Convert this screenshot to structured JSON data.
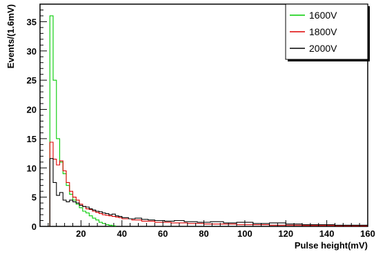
{
  "chart_data": {
    "type": "line",
    "xlabel": "Pulse height(mV)",
    "ylabel": "Events/(1.6mV)",
    "xlim": [
      0,
      160
    ],
    "ylim": [
      0,
      38
    ],
    "x_ticks": [
      20,
      40,
      60,
      80,
      100,
      120,
      140,
      160
    ],
    "x_tick_labels": [
      "20",
      "40",
      "60",
      "80",
      "100",
      "120",
      "140",
      "160"
    ],
    "y_ticks": [
      0,
      5,
      10,
      15,
      20,
      25,
      30,
      35
    ],
    "y_tick_labels": [
      "0",
      "5",
      "10",
      "15",
      "20",
      "25",
      "30",
      "35"
    ],
    "grid": false,
    "legend_position": "top-right",
    "series": [
      {
        "name": "1600V",
        "color": "#00cc00",
        "bins": [
          [
            4.8,
            6.4,
            36.0
          ],
          [
            6.4,
            8.0,
            25.0
          ],
          [
            8.0,
            9.6,
            15.0
          ],
          [
            9.6,
            11.2,
            11.0
          ],
          [
            11.2,
            12.8,
            9.0
          ],
          [
            12.8,
            14.4,
            7.0
          ],
          [
            14.4,
            16.0,
            5.5
          ],
          [
            16.0,
            17.6,
            4.5
          ],
          [
            17.6,
            19.2,
            3.8
          ],
          [
            19.2,
            20.8,
            3.2
          ],
          [
            20.8,
            22.4,
            2.6
          ],
          [
            22.4,
            24.0,
            2.3
          ],
          [
            24.0,
            25.6,
            1.8
          ],
          [
            25.6,
            27.2,
            1.4
          ],
          [
            27.2,
            28.8,
            1.1
          ],
          [
            28.8,
            30.4,
            0.7
          ],
          [
            30.4,
            32.0,
            0.5
          ],
          [
            32.0,
            33.6,
            0.3
          ],
          [
            33.6,
            35.2,
            0.2
          ],
          [
            35.2,
            36.8,
            0.1
          ]
        ]
      },
      {
        "name": "1800V",
        "color": "#dd0000",
        "bins": [
          [
            4.8,
            6.4,
            14.4
          ],
          [
            6.4,
            8.0,
            11.5
          ],
          [
            8.0,
            9.6,
            10.5
          ],
          [
            9.6,
            11.2,
            11.2
          ],
          [
            11.2,
            12.8,
            9.5
          ],
          [
            12.8,
            14.4,
            7.5
          ],
          [
            14.4,
            16.0,
            6.0
          ],
          [
            16.0,
            17.6,
            5.0
          ],
          [
            17.6,
            19.2,
            4.5
          ],
          [
            19.2,
            20.8,
            3.8
          ],
          [
            20.8,
            22.4,
            3.4
          ],
          [
            22.4,
            24.0,
            3.0
          ],
          [
            24.0,
            25.6,
            2.9
          ],
          [
            25.6,
            27.2,
            2.6
          ],
          [
            27.2,
            28.8,
            2.4
          ],
          [
            28.8,
            30.4,
            2.2
          ],
          [
            30.4,
            32.0,
            2.0
          ],
          [
            32.0,
            33.6,
            1.9
          ],
          [
            33.6,
            35.2,
            1.8
          ],
          [
            35.2,
            36.8,
            1.7
          ],
          [
            36.8,
            38.4,
            1.6
          ],
          [
            38.4,
            40.0,
            1.5
          ],
          [
            40.0,
            44.8,
            1.3
          ],
          [
            44.8,
            49.6,
            1.1
          ],
          [
            49.6,
            56.0,
            0.9
          ],
          [
            56.0,
            64.0,
            0.7
          ],
          [
            64.0,
            72.0,
            0.6
          ],
          [
            72.0,
            80.0,
            0.5
          ],
          [
            80.0,
            96.0,
            0.4
          ],
          [
            96.0,
            112.0,
            0.3
          ],
          [
            112.0,
            128.0,
            0.2
          ],
          [
            128.0,
            144.0,
            0.15
          ],
          [
            144.0,
            160.0,
            0.1
          ]
        ]
      },
      {
        "name": "2000V",
        "color": "#000000",
        "bins": [
          [
            4.8,
            6.4,
            11.6
          ],
          [
            6.4,
            8.0,
            7.5
          ],
          [
            8.0,
            9.6,
            5.3
          ],
          [
            9.6,
            11.2,
            5.8
          ],
          [
            11.2,
            12.8,
            4.5
          ],
          [
            12.8,
            14.4,
            4.2
          ],
          [
            14.4,
            16.0,
            4.5
          ],
          [
            16.0,
            17.6,
            4.2
          ],
          [
            17.6,
            19.2,
            4.0
          ],
          [
            19.2,
            20.8,
            3.6
          ],
          [
            20.8,
            22.4,
            3.4
          ],
          [
            22.4,
            24.0,
            3.3
          ],
          [
            24.0,
            25.6,
            3.0
          ],
          [
            25.6,
            27.2,
            2.8
          ],
          [
            27.2,
            28.8,
            2.6
          ],
          [
            28.8,
            30.4,
            2.5
          ],
          [
            30.4,
            32.0,
            2.3
          ],
          [
            32.0,
            33.6,
            2.2
          ],
          [
            33.6,
            35.2,
            2.0
          ],
          [
            35.2,
            36.8,
            2.1
          ],
          [
            36.8,
            38.4,
            1.8
          ],
          [
            38.4,
            40.0,
            1.7
          ],
          [
            40.0,
            43.2,
            1.5
          ],
          [
            43.2,
            46.4,
            1.3
          ],
          [
            46.4,
            49.6,
            1.4
          ],
          [
            49.6,
            52.8,
            1.2
          ],
          [
            52.8,
            56.0,
            1.1
          ],
          [
            56.0,
            60.8,
            1.0
          ],
          [
            60.8,
            65.6,
            0.9
          ],
          [
            65.6,
            70.4,
            1.0
          ],
          [
            70.4,
            76.8,
            0.8
          ],
          [
            76.8,
            83.2,
            0.7
          ],
          [
            83.2,
            89.6,
            0.8
          ],
          [
            89.6,
            96.0,
            0.6
          ],
          [
            96.0,
            104.0,
            0.7
          ],
          [
            104.0,
            112.0,
            0.5
          ],
          [
            112.0,
            120.0,
            0.6
          ],
          [
            120.0,
            128.0,
            0.4
          ],
          [
            128.0,
            136.0,
            0.3
          ],
          [
            136.0,
            144.0,
            0.3
          ],
          [
            144.0,
            152.0,
            0.2
          ],
          [
            152.0,
            160.0,
            0.2
          ]
        ]
      }
    ]
  }
}
